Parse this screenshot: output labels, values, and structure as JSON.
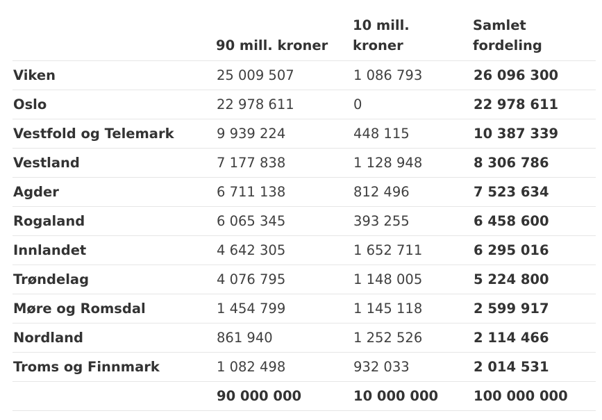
{
  "table": {
    "headers": [
      "",
      "90 mill. kroner",
      "10 mill.\nkroner",
      "Samlet\nfordeling"
    ],
    "rows": [
      [
        "Viken",
        "25 009 507",
        "1 086 793",
        "26 096 300"
      ],
      [
        "Oslo",
        "22 978 611",
        "0",
        "22 978 611"
      ],
      [
        "Vestfold og Telemark",
        "9 939 224",
        "448 115",
        "10 387 339"
      ],
      [
        "Vestland",
        "7 177 838",
        "1 128 948",
        "8 306 786"
      ],
      [
        "Agder",
        "6 711 138",
        "812 496",
        "7 523 634"
      ],
      [
        "Rogaland",
        "6 065 345",
        "393 255",
        "6 458 600"
      ],
      [
        "Innlandet",
        "4 642 305",
        "1 652 711",
        "6 295 016"
      ],
      [
        "Trøndelag",
        "4 076 795",
        "1 148 005",
        "5 224 800"
      ],
      [
        "Møre og Romsdal",
        "1 454 799",
        "1 145 118",
        "2 599 917"
      ],
      [
        "Nordland",
        "861 940",
        "1 252 526",
        "2 114 466"
      ],
      [
        "Troms og Finnmark",
        "1 082 498",
        "932 033",
        "2 014 531"
      ]
    ],
    "totals": [
      "",
      "90 000 000",
      "10 000 000",
      "100 000 000"
    ]
  }
}
